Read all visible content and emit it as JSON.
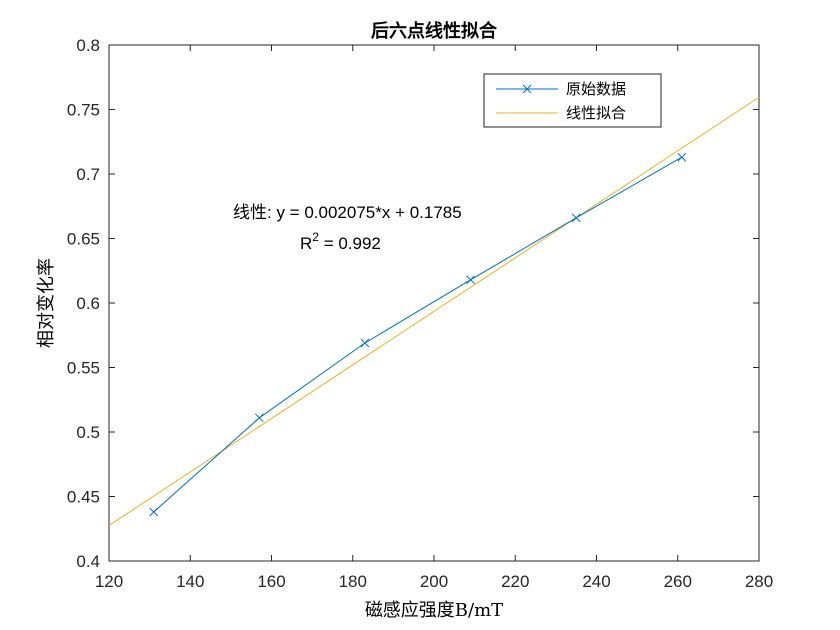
{
  "chart_data": {
    "type": "line",
    "title": "后六点线性拟合",
    "xlabel": "磁感应强度B/mT",
    "ylabel": "相对变化率",
    "xlim": [
      120,
      280
    ],
    "ylim": [
      0.4,
      0.8
    ],
    "xticks": [
      120,
      140,
      160,
      180,
      200,
      220,
      240,
      260,
      280
    ],
    "yticks": [
      0.4,
      0.45,
      0.5,
      0.55,
      0.6,
      0.65,
      0.7,
      0.75,
      0.8
    ],
    "xtick_labels": [
      "120",
      "140",
      "160",
      "180",
      "200",
      "220",
      "240",
      "260",
      "280"
    ],
    "ytick_labels": [
      "0.4",
      "0.45",
      "0.5",
      "0.55",
      "0.6",
      "0.65",
      "0.7",
      "0.75",
      "0.8"
    ],
    "grid": false,
    "legend_position": "top-right",
    "series": [
      {
        "name": "原始数据",
        "color": "#0072BD",
        "marker": "x",
        "x": [
          131,
          157,
          183,
          209,
          235,
          261
        ],
        "y": [
          0.438,
          0.511,
          0.569,
          0.618,
          0.666,
          0.713
        ]
      },
      {
        "name": "线性拟合",
        "color": "#EDB120",
        "marker": "none",
        "slope": 0.002075,
        "intercept": 0.1785,
        "x": [
          120,
          280
        ],
        "y": [
          0.4275,
          0.7595
        ]
      }
    ],
    "annotations": {
      "equation": "线性:  y = 0.002075*x + 0.1785",
      "r2_base": "R",
      "r2_sup": "2",
      "r2_rest": " = 0.992"
    }
  }
}
